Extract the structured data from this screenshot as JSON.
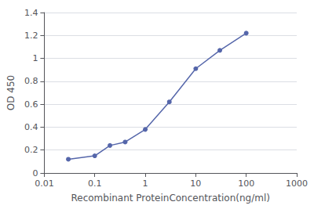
{
  "chart_data": {
    "type": "line",
    "x": [
      0.03,
      0.1,
      0.2,
      0.4,
      1.0,
      3.0,
      10.0,
      30.0,
      100.0
    ],
    "values": [
      0.12,
      0.15,
      0.24,
      0.27,
      0.38,
      0.62,
      0.91,
      1.07,
      1.22
    ],
    "color": "#5566aa",
    "marker": "circle",
    "xlabel": "Recombinant ProteinConcentration(ng/ml)",
    "ylabel": "OD 450",
    "log": "x",
    "xlim": [
      0.01,
      1000
    ],
    "xticks": [
      0.01,
      0.1,
      1,
      10,
      100,
      1000
    ],
    "ylim": [
      0,
      1.4
    ],
    "yticks": [
      0,
      0.2,
      0.4,
      0.6,
      0.8,
      1.0,
      1.2,
      1.4
    ],
    "grid": true
  }
}
